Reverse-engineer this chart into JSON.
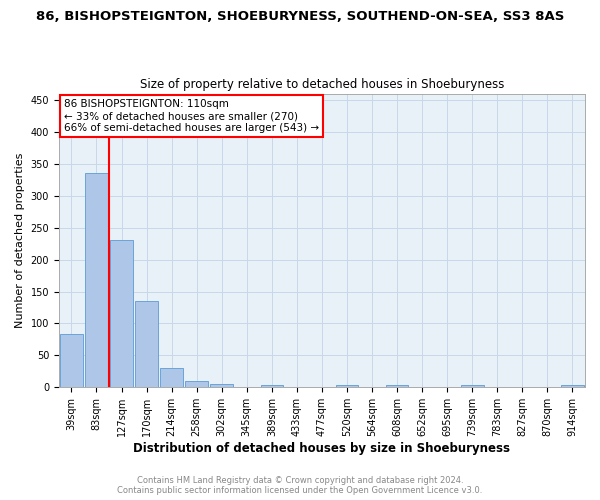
{
  "title": "86, BISHOPSTEIGNTON, SHOEBURYNESS, SOUTHEND-ON-SEA, SS3 8AS",
  "subtitle": "Size of property relative to detached houses in Shoeburyness",
  "xlabel": "Distribution of detached houses by size in Shoeburyness",
  "ylabel": "Number of detached properties",
  "categories": [
    "39sqm",
    "83sqm",
    "127sqm",
    "170sqm",
    "214sqm",
    "258sqm",
    "302sqm",
    "345sqm",
    "389sqm",
    "433sqm",
    "477sqm",
    "520sqm",
    "564sqm",
    "608sqm",
    "652sqm",
    "695sqm",
    "739sqm",
    "783sqm",
    "827sqm",
    "870sqm",
    "914sqm"
  ],
  "values": [
    83,
    335,
    230,
    135,
    30,
    10,
    5,
    0,
    4,
    0,
    0,
    3,
    0,
    3,
    0,
    0,
    3,
    0,
    0,
    0,
    4
  ],
  "bar_color": "#aec6e8",
  "bar_edge_color": "#5b9bd5",
  "vline_x": 1.5,
  "vline_color": "red",
  "annotation_line1": "86 BISHOPSTEIGNTON: 110sqm",
  "annotation_line2": "← 33% of detached houses are smaller (270)",
  "annotation_line3": "66% of semi-detached houses are larger (543) →",
  "ylim": [
    0,
    460
  ],
  "yticks": [
    0,
    50,
    100,
    150,
    200,
    250,
    300,
    350,
    400,
    450
  ],
  "grid_color": "#c8d8ea",
  "bg_color": "#e8f0f8",
  "footnote": "Contains HM Land Registry data © Crown copyright and database right 2024.\nContains public sector information licensed under the Open Government Licence v3.0.",
  "title_fontsize": 9.5,
  "subtitle_fontsize": 8.5,
  "xlabel_fontsize": 8.5,
  "ylabel_fontsize": 8,
  "tick_fontsize": 7,
  "annot_fontsize": 7.5,
  "footnote_fontsize": 6
}
